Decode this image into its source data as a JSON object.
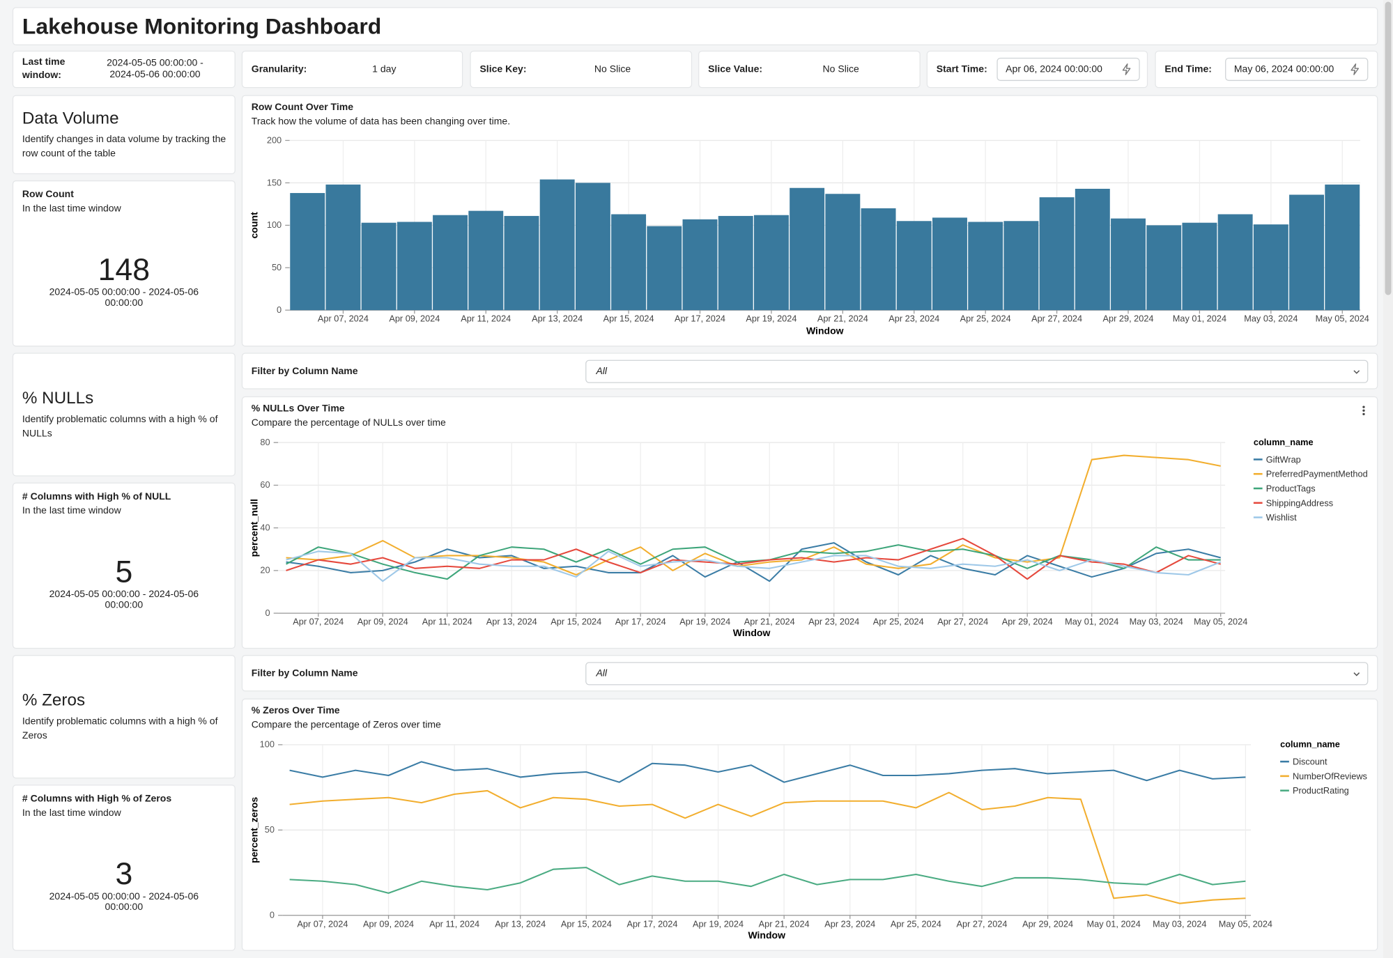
{
  "header": {
    "title": "Lakehouse Monitoring Dashboard"
  },
  "filters": [
    {
      "label": "Last time window:",
      "value": "2024-05-05 00:00:00 - 2024-05-06 00:00:00"
    },
    {
      "label": "Granularity:",
      "value": "1 day"
    },
    {
      "label": "Slice Key:",
      "value": "No Slice"
    },
    {
      "label": "Slice Value:",
      "value": "No Slice"
    },
    {
      "label": "Start Time:",
      "value": "Apr 06, 2024 00:00:00"
    },
    {
      "label": "End Time:",
      "value": "May 06, 2024 00:00:00"
    }
  ],
  "sections": [
    {
      "title": "Data Volume",
      "description": "Identify changes in data volume by tracking the row count of the table",
      "metric": {
        "title": "Row Count",
        "subtitle": "In the last time window",
        "value": 148,
        "window": "2024-05-05 00:00:00 - 2024-05-06 00:00:00"
      },
      "chart_data": {
        "type": "bar",
        "title": "Row Count Over Time",
        "subtitle": "Track how the volume of data has been changing over time.",
        "x_label": "Window",
        "y_label": "count",
        "categories": [
          null,
          "Apr 07, 2024",
          null,
          "Apr 09, 2024",
          null,
          "Apr 11, 2024",
          null,
          "Apr 13, 2024",
          null,
          "Apr 15, 2024",
          null,
          "Apr 17, 2024",
          null,
          "Apr 19, 2024",
          null,
          "Apr 21, 2024",
          null,
          "Apr 23, 2024",
          null,
          "Apr 25, 2024",
          null,
          "Apr 27, 2024",
          null,
          "Apr 29, 2024",
          null,
          "May 01, 2024",
          null,
          "May 03, 2024",
          null,
          "May 05, 2024"
        ],
        "values": [
          138,
          148,
          103,
          104,
          112,
          117,
          111,
          154,
          150,
          113,
          99,
          107,
          111,
          112,
          144,
          137,
          120,
          105,
          109,
          104,
          105,
          133,
          143,
          108,
          100,
          103,
          113,
          101,
          136,
          148
        ],
        "color": "#39799d",
        "ylim": [
          0,
          200
        ],
        "yticks": [
          0,
          50,
          100,
          150,
          200
        ],
        "grid": true
      }
    },
    {
      "title": "% NULLs",
      "description": "Identify problematic columns with a high % of NULLs",
      "metric": {
        "title": "# Columns with High % of NULL",
        "subtitle": "In the last time window",
        "value": 5,
        "window": "2024-05-05 00:00:00 - 2024-05-06 00:00:00"
      },
      "filter_label": "Filter by Column Name",
      "filter_value": "All",
      "chart_data": {
        "type": "line",
        "title": "% NULLs Over Time",
        "subtitle": "Compare the percentage of NULLs over time",
        "x_label": "Window",
        "y_label": "percent_null",
        "legend_title": "column_name",
        "categories": [
          null,
          "Apr 07, 2024",
          null,
          "Apr 09, 2024",
          null,
          "Apr 11, 2024",
          null,
          "Apr 13, 2024",
          null,
          "Apr 15, 2024",
          null,
          "Apr 17, 2024",
          null,
          "Apr 19, 2024",
          null,
          "Apr 21, 2024",
          null,
          "Apr 23, 2024",
          null,
          "Apr 25, 2024",
          null,
          "Apr 27, 2024",
          null,
          "Apr 29, 2024",
          null,
          "May 01, 2024",
          null,
          "May 03, 2024",
          null,
          "May 05, 2024"
        ],
        "series": [
          {
            "name": "GiftWrap",
            "color": "#3a7ca5",
            "values": [
              24,
              22,
              19,
              20,
              24,
              30,
              26,
              27,
              21,
              22,
              19,
              19,
              27,
              17,
              24,
              15,
              30,
              33,
              24,
              18,
              27,
              21,
              18,
              27,
              22,
              17,
              21,
              28,
              30,
              26
            ]
          },
          {
            "name": "PreferredPaymentMethod",
            "color": "#f2ae2e",
            "values": [
              26,
              25,
              27,
              34,
              26,
              27,
              27,
              26,
              24,
              18,
              25,
              31,
              20,
              28,
              22,
              24,
              25,
              31,
              23,
              21,
              23,
              32,
              26,
              24,
              26,
              72,
              74,
              73,
              72,
              69
            ]
          },
          {
            "name": "ProductTags",
            "color": "#3da57a",
            "values": [
              23,
              31,
              28,
              23,
              19,
              16,
              27,
              31,
              30,
              24,
              30,
              23,
              30,
              31,
              24,
              25,
              29,
              28,
              29,
              32,
              29,
              30,
              27,
              21,
              27,
              25,
              21,
              31,
              25,
              25
            ]
          },
          {
            "name": "ShippingAddress",
            "color": "#e5483c",
            "values": [
              20,
              25,
              23,
              26,
              21,
              22,
              21,
              25,
              25,
              30,
              24,
              19,
              25,
              24,
              23,
              25,
              26,
              24,
              26,
              25,
              30,
              35,
              27,
              16,
              27,
              24,
              23,
              19,
              27,
              23
            ]
          },
          {
            "name": "Wishlist",
            "color": "#9ec8e8",
            "values": [
              25,
              29,
              28,
              15,
              26,
              26,
              23,
              22,
              22,
              17,
              29,
              22,
              24,
              25,
              22,
              21,
              24,
              27,
              27,
              22,
              21,
              23,
              22,
              25,
              20,
              25,
              22,
              19,
              18,
              24
            ]
          }
        ],
        "ylim": [
          0,
          80
        ],
        "yticks": [
          0,
          20,
          40,
          60,
          80
        ],
        "grid": true
      }
    },
    {
      "title": "% Zeros",
      "description": "Identify problematic columns with a high % of Zeros",
      "metric": {
        "title": "# Columns with High % of Zeros",
        "subtitle": "In the last time window",
        "value": 3,
        "window": "2024-05-05 00:00:00 - 2024-05-06 00:00:00"
      },
      "filter_label": "Filter by Column Name",
      "filter_value": "All",
      "chart_data": {
        "type": "line",
        "title": "% Zeros Over Time",
        "subtitle": "Compare the percentage of Zeros over time",
        "x_label": "Window",
        "y_label": "percent_zeros",
        "legend_title": "column_name",
        "categories": [
          null,
          "Apr 07, 2024",
          null,
          "Apr 09, 2024",
          null,
          "Apr 11, 2024",
          null,
          "Apr 13, 2024",
          null,
          "Apr 15, 2024",
          null,
          "Apr 17, 2024",
          null,
          "Apr 19, 2024",
          null,
          "Apr 21, 2024",
          null,
          "Apr 23, 2024",
          null,
          "Apr 25, 2024",
          null,
          "Apr 27, 2024",
          null,
          "Apr 29, 2024",
          null,
          "May 01, 2024",
          null,
          "May 03, 2024",
          null,
          "May 05, 2024"
        ],
        "series": [
          {
            "name": "Discount",
            "color": "#3a7ca5",
            "values": [
              85,
              81,
              85,
              82,
              90,
              85,
              86,
              81,
              83,
              84,
              78,
              89,
              88,
              84,
              88,
              78,
              83,
              88,
              82,
              82,
              83,
              85,
              86,
              83,
              84,
              85,
              79,
              85,
              80,
              81
            ]
          },
          {
            "name": "NumberOfReviews",
            "color": "#f2ae2e",
            "values": [
              65,
              67,
              68,
              69,
              66,
              71,
              73,
              63,
              69,
              68,
              64,
              65,
              57,
              65,
              58,
              66,
              67,
              67,
              67,
              63,
              72,
              62,
              64,
              69,
              68,
              10,
              12,
              7,
              9,
              10
            ]
          },
          {
            "name": "ProductRating",
            "color": "#4aab82",
            "values": [
              21,
              20,
              18,
              13,
              20,
              17,
              15,
              19,
              27,
              28,
              18,
              23,
              20,
              20,
              17,
              24,
              18,
              21,
              21,
              24,
              20,
              17,
              22,
              22,
              21,
              19,
              18,
              24,
              18,
              20
            ]
          }
        ],
        "ylim": [
          0,
          100
        ],
        "yticks": [
          0,
          50,
          100
        ],
        "grid": true
      }
    }
  ]
}
